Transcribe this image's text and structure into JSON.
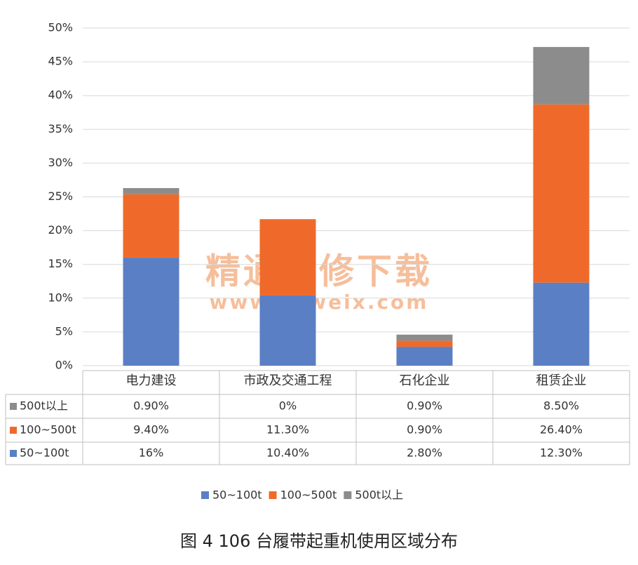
{
  "chart_data": {
    "type": "stacked-bar",
    "title": "图 4  106 台履带起重机使用区域分布",
    "categories": [
      "电力建设",
      "市政及交通工程",
      "石化企业",
      "租赁企业"
    ],
    "series": [
      {
        "name": "50~100t",
        "color": "#5b7fc4",
        "values": [
          16,
          10.4,
          2.8,
          12.3
        ],
        "value_labels": [
          "16%",
          "10.40%",
          "2.80%",
          "12.30%"
        ]
      },
      {
        "name": "100~500t",
        "color": "#ef6a2a",
        "values": [
          9.4,
          11.3,
          0.9,
          26.4
        ],
        "value_labels": [
          "9.40%",
          "11.30%",
          "0.90%",
          "26.40%"
        ]
      },
      {
        "name": "500t以上",
        "color": "#8c8c8c",
        "values": [
          0.9,
          0,
          0.9,
          8.5
        ],
        "value_labels": [
          "0.90%",
          "0%",
          "0.90%",
          "8.50%"
        ]
      }
    ],
    "ylim": [
      0,
      50
    ],
    "yticks": [
      {
        "value": 0,
        "label": "0%"
      },
      {
        "value": 5,
        "label": "5%"
      },
      {
        "value": 10,
        "label": "10%"
      },
      {
        "value": 15,
        "label": "15%"
      },
      {
        "value": 20,
        "label": "20%"
      },
      {
        "value": 25,
        "label": "25%"
      },
      {
        "value": 30,
        "label": "30%"
      },
      {
        "value": 35,
        "label": "35%"
      },
      {
        "value": 40,
        "label": "40%"
      },
      {
        "value": 45,
        "label": "45%"
      },
      {
        "value": 50,
        "label": "50%"
      }
    ],
    "grid": true,
    "annotations": [
      "精通维修下载",
      "www.gzweix.com"
    ]
  }
}
